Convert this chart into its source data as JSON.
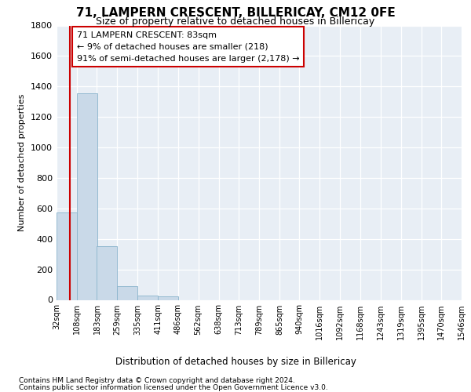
{
  "title": "71, LAMPERN CRESCENT, BILLERICAY, CM12 0FE",
  "subtitle": "Size of property relative to detached houses in Billericay",
  "xlabel_bottom": "Distribution of detached houses by size in Billericay",
  "ylabel": "Number of detached properties",
  "footnote1": "Contains HM Land Registry data © Crown copyright and database right 2024.",
  "footnote2": "Contains public sector information licensed under the Open Government Licence v3.0.",
  "annotation_line1": "71 LAMPERN CRESCENT: 83sqm",
  "annotation_line2": "← 9% of detached houses are smaller (218)",
  "annotation_line3": "91% of semi-detached houses are larger (2,178) →",
  "bar_color": "#c9d9e8",
  "bar_edgecolor": "#8ab4cc",
  "vline_color": "#cc0000",
  "annotation_box_edgecolor": "#cc0000",
  "bg_color": "#e8eef5",
  "grid_color": "#ffffff",
  "bin_labels": [
    "32sqm",
    "108sqm",
    "183sqm",
    "259sqm",
    "335sqm",
    "411sqm",
    "486sqm",
    "562sqm",
    "638sqm",
    "713sqm",
    "789sqm",
    "865sqm",
    "940sqm",
    "1016sqm",
    "1092sqm",
    "1168sqm",
    "1243sqm",
    "1319sqm",
    "1395sqm",
    "1470sqm",
    "1546sqm"
  ],
  "bin_lefts": [
    32,
    108,
    183,
    259,
    335,
    411,
    486,
    562,
    638,
    713,
    789,
    865,
    940,
    1016,
    1092,
    1168,
    1243,
    1319,
    1395,
    1470
  ],
  "values": [
    575,
    1355,
    350,
    90,
    30,
    25,
    0,
    0,
    0,
    0,
    0,
    0,
    0,
    0,
    0,
    0,
    0,
    0,
    0,
    0
  ],
  "vline_x": 83,
  "xmin": 32,
  "xmax": 1546,
  "bin_width": 76,
  "ymax": 1800,
  "yticks": [
    0,
    200,
    400,
    600,
    800,
    1000,
    1200,
    1400,
    1600,
    1800
  ],
  "title_fontsize": 11,
  "subtitle_fontsize": 9,
  "ylabel_fontsize": 8,
  "tick_fontsize": 8,
  "xtick_fontsize": 7,
  "annot_fontsize": 8,
  "xlabel_fontsize": 8.5,
  "footnote_fontsize": 6.5
}
